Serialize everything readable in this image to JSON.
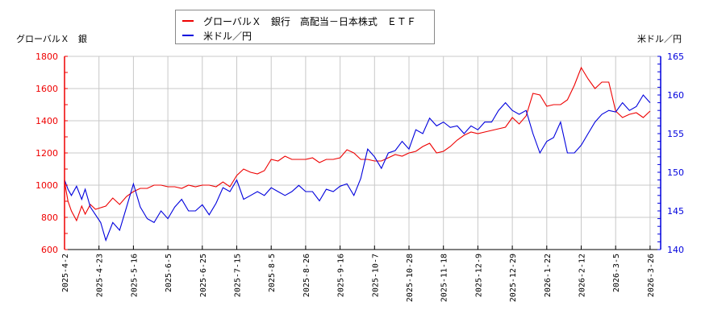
{
  "legend": {
    "series1_label": "グローバルＸ　銀行　高配当－日本株式　ＥＴＦ",
    "series2_label": "米ドル／円"
  },
  "axis_titles": {
    "left": "グローバルＸ　銀",
    "right": "米ドル／円"
  },
  "colors": {
    "series1": "#ee0000",
    "series2": "#0000dd",
    "grid": "#c8c8c8",
    "left_axis": "#ee0000",
    "right_axis": "#0000dd",
    "bottom_axis": "#000000"
  },
  "chart_data": {
    "type": "line",
    "title": "",
    "xlabel": "",
    "ylabel_left": "グローバルＸ　銀",
    "ylabel_right": "米ドル／円",
    "grid": true,
    "legend_position": "top-center",
    "x_ticks": [
      "2025-4-2",
      "2025-4-23",
      "2025-5-16",
      "2025-6-5",
      "2025-6-25",
      "2025-7-15",
      "2025-8-5",
      "2025-8-26",
      "2025-9-16",
      "2025-10-7",
      "2025-10-28",
      "2025-11-18",
      "2025-12-9",
      "2025-12-29",
      "2026-1-22",
      "2026-2-12",
      "2026-3-5",
      "2026-3-26"
    ],
    "y_left": {
      "range": [
        600,
        1800
      ],
      "ticks": [
        600,
        800,
        1000,
        1200,
        1400,
        1600,
        1800
      ]
    },
    "y_right": {
      "range": [
        140,
        165
      ],
      "ticks": [
        140,
        145,
        150,
        155,
        160,
        165
      ]
    },
    "series": [
      {
        "name": "グローバルＸ　銀行　高配当－日本株式　ＥＴＦ",
        "axis": "left",
        "x_index": [
          0,
          0.1,
          0.2,
          0.35,
          0.5,
          0.6,
          0.75,
          0.9,
          1.05,
          1.2,
          1.4,
          1.6,
          1.8,
          2.0,
          2.2,
          2.4,
          2.6,
          2.8,
          3.0,
          3.2,
          3.4,
          3.6,
          3.8,
          4.0,
          4.2,
          4.4,
          4.6,
          4.8,
          5.0,
          5.2,
          5.4,
          5.6,
          5.8,
          6.0,
          6.2,
          6.4,
          6.6,
          6.8,
          7.0,
          7.2,
          7.4,
          7.6,
          7.8,
          8.0,
          8.2,
          8.4,
          8.6,
          8.8,
          9.0,
          9.2,
          9.4,
          9.6,
          9.8,
          10.0,
          10.2,
          10.4,
          10.6,
          10.8,
          11.0,
          11.2,
          11.4,
          11.6,
          11.8,
          12.0,
          12.2,
          12.4,
          12.6,
          12.8,
          13.0,
          13.2,
          13.4,
          13.6,
          13.8,
          14.0,
          14.2,
          14.4,
          14.6,
          14.8,
          15.0,
          15.2,
          15.4,
          15.6,
          15.8,
          16.0,
          16.2,
          16.4,
          16.6,
          16.8,
          17.0
        ],
        "values": [
          1020,
          900,
          840,
          780,
          870,
          820,
          880,
          850,
          860,
          870,
          920,
          880,
          930,
          960,
          980,
          980,
          1000,
          1000,
          990,
          990,
          980,
          1000,
          990,
          1000,
          1000,
          990,
          1020,
          990,
          1060,
          1100,
          1080,
          1070,
          1090,
          1160,
          1150,
          1180,
          1160,
          1160,
          1160,
          1170,
          1140,
          1160,
          1160,
          1170,
          1220,
          1200,
          1160,
          1160,
          1150,
          1150,
          1170,
          1190,
          1180,
          1200,
          1210,
          1240,
          1260,
          1200,
          1210,
          1240,
          1280,
          1310,
          1330,
          1320,
          1330,
          1340,
          1350,
          1360,
          1420,
          1380,
          1430,
          1570,
          1560,
          1490,
          1500,
          1500,
          1530,
          1620,
          1730,
          1660,
          1600,
          1640,
          1640,
          1460,
          1420,
          1440,
          1450,
          1420,
          1460
        ]
      },
      {
        "name": "米ドル／円",
        "axis": "right",
        "x_index": [
          0,
          0.1,
          0.2,
          0.35,
          0.5,
          0.6,
          0.75,
          0.9,
          1.05,
          1.2,
          1.4,
          1.6,
          1.8,
          2.0,
          2.2,
          2.4,
          2.6,
          2.8,
          3.0,
          3.2,
          3.4,
          3.6,
          3.8,
          4.0,
          4.2,
          4.4,
          4.6,
          4.8,
          5.0,
          5.2,
          5.4,
          5.6,
          5.8,
          6.0,
          6.2,
          6.4,
          6.6,
          6.8,
          7.0,
          7.2,
          7.4,
          7.6,
          7.8,
          8.0,
          8.2,
          8.4,
          8.6,
          8.8,
          9.0,
          9.2,
          9.4,
          9.6,
          9.8,
          10.0,
          10.2,
          10.4,
          10.6,
          10.8,
          11.0,
          11.2,
          11.4,
          11.6,
          11.8,
          12.0,
          12.2,
          12.4,
          12.6,
          12.8,
          13.0,
          13.2,
          13.4,
          13.6,
          13.8,
          14.0,
          14.2,
          14.4,
          14.6,
          14.8,
          15.0,
          15.2,
          15.4,
          15.6,
          15.8,
          16.0,
          16.2,
          16.4,
          16.6,
          16.8,
          17.0
        ],
        "values": [
          149,
          147.8,
          147,
          148.2,
          146.5,
          147.8,
          145.5,
          144.5,
          143.5,
          141.2,
          143.5,
          142.5,
          145.5,
          148.5,
          145.5,
          144,
          143.5,
          145,
          144,
          145.5,
          146.5,
          145,
          145,
          145.8,
          144.5,
          146,
          148,
          147.5,
          149,
          146.5,
          147,
          147.5,
          147,
          148,
          147.5,
          147,
          147.5,
          148.3,
          147.5,
          147.5,
          146.3,
          147.8,
          147.5,
          148.2,
          148.5,
          147,
          149.2,
          153,
          152,
          150.5,
          152.5,
          152.8,
          154,
          153,
          155.5,
          155,
          157,
          156,
          156.5,
          155.8,
          156,
          155,
          156,
          155.5,
          156.5,
          156.5,
          158,
          159,
          158,
          157.5,
          158,
          155,
          152.5,
          154,
          154.5,
          156.5,
          152.5,
          152.5,
          153.5,
          155,
          156.5,
          157.5,
          158,
          157.8,
          159,
          158,
          158.5,
          160,
          159
        ]
      }
    ]
  }
}
